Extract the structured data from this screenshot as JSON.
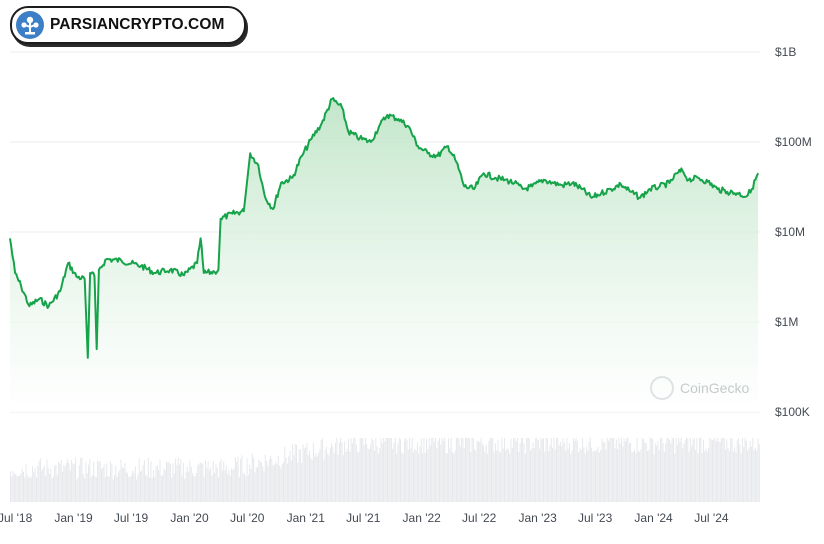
{
  "logo": {
    "text": "PARSIANCRYPTO.COM",
    "icon": "parsiancrypto-tree-icon",
    "color": "#3d7fc6"
  },
  "watermark": {
    "text": "CoinGecko",
    "icon": "coingecko-icon"
  },
  "chart_data": {
    "type": "area",
    "yscale": "log",
    "ylim": [
      100000,
      1000000000
    ],
    "y_ticks": [
      {
        "value": 1000000000,
        "label": "$1B"
      },
      {
        "value": 100000000,
        "label": "$100M"
      },
      {
        "value": 10000000,
        "label": "$10M"
      },
      {
        "value": 1000000,
        "label": "$1M"
      },
      {
        "value": 100000,
        "label": "$100K"
      }
    ],
    "x_ticks": [
      "Jul '18",
      "Jan '19",
      "Jul '19",
      "Jan '20",
      "Jul '20",
      "Jan '21",
      "Jul '21",
      "Jan '22",
      "Jul '22",
      "Jan '23",
      "Jul '23",
      "Jan '24",
      "Jul '24"
    ],
    "colors": {
      "line": "#16a34a",
      "fill_top": "#bfe5c7",
      "fill_bottom": "#ffffff",
      "volume": "#e6e8eb",
      "grid": "#eceef0"
    },
    "series": [
      {
        "values": [
          [
            "2018-06-15",
            8500000
          ],
          [
            "2018-07-01",
            3500000
          ],
          [
            "2018-07-20",
            2500000
          ],
          [
            "2018-08-15",
            1500000
          ],
          [
            "2018-09-15",
            1800000
          ],
          [
            "2018-10-15",
            1500000
          ],
          [
            "2018-11-20",
            2200000
          ],
          [
            "2018-12-15",
            4500000
          ],
          [
            "2019-01-10",
            3200000
          ],
          [
            "2019-02-05",
            3000000
          ],
          [
            "2019-02-15",
            400000
          ],
          [
            "2019-02-22",
            3500000
          ],
          [
            "2019-03-08",
            3200000
          ],
          [
            "2019-03-15",
            500000
          ],
          [
            "2019-03-22",
            3800000
          ],
          [
            "2019-04-15",
            5000000
          ],
          [
            "2019-06-01",
            4800000
          ],
          [
            "2019-08-01",
            4200000
          ],
          [
            "2019-09-15",
            3500000
          ],
          [
            "2019-11-01",
            3800000
          ],
          [
            "2019-12-15",
            3300000
          ],
          [
            "2020-01-25",
            4500000
          ],
          [
            "2020-02-05",
            8500000
          ],
          [
            "2020-02-15",
            3500000
          ],
          [
            "2020-03-20",
            3600000
          ],
          [
            "2020-04-01",
            3800000
          ],
          [
            "2020-04-08",
            14000000
          ],
          [
            "2020-05-15",
            16000000
          ],
          [
            "2020-06-20",
            17000000
          ],
          [
            "2020-07-10",
            75000000
          ],
          [
            "2020-08-05",
            55000000
          ],
          [
            "2020-08-25",
            25000000
          ],
          [
            "2020-09-20",
            18000000
          ],
          [
            "2020-10-15",
            35000000
          ],
          [
            "2020-11-20",
            40000000
          ],
          [
            "2020-12-20",
            70000000
          ],
          [
            "2021-01-20",
            110000000
          ],
          [
            "2021-02-20",
            160000000
          ],
          [
            "2021-03-25",
            300000000
          ],
          [
            "2021-04-25",
            240000000
          ],
          [
            "2021-05-15",
            130000000
          ],
          [
            "2021-06-20",
            110000000
          ],
          [
            "2021-07-25",
            100000000
          ],
          [
            "2021-08-20",
            150000000
          ],
          [
            "2021-09-15",
            200000000
          ],
          [
            "2021-10-20",
            180000000
          ],
          [
            "2021-11-20",
            150000000
          ],
          [
            "2021-12-20",
            90000000
          ],
          [
            "2022-01-20",
            75000000
          ],
          [
            "2022-02-20",
            70000000
          ],
          [
            "2022-03-25",
            90000000
          ],
          [
            "2022-04-20",
            60000000
          ],
          [
            "2022-05-15",
            32000000
          ],
          [
            "2022-06-15",
            30000000
          ],
          [
            "2022-07-15",
            45000000
          ],
          [
            "2022-08-20",
            40000000
          ],
          [
            "2022-09-20",
            38000000
          ],
          [
            "2022-10-20",
            35000000
          ],
          [
            "2022-11-15",
            30000000
          ],
          [
            "2022-12-15",
            32000000
          ],
          [
            "2023-01-20",
            38000000
          ],
          [
            "2023-02-20",
            35000000
          ],
          [
            "2023-03-20",
            33000000
          ],
          [
            "2023-04-20",
            35000000
          ],
          [
            "2023-05-20",
            30000000
          ],
          [
            "2023-06-20",
            24000000
          ],
          [
            "2023-07-20",
            27000000
          ],
          [
            "2023-08-20",
            30000000
          ],
          [
            "2023-09-20",
            34000000
          ],
          [
            "2023-10-20",
            28000000
          ],
          [
            "2023-11-20",
            24000000
          ],
          [
            "2023-12-20",
            30000000
          ],
          [
            "2024-01-20",
            32000000
          ],
          [
            "2024-02-20",
            35000000
          ],
          [
            "2024-03-15",
            45000000
          ],
          [
            "2024-04-01",
            48000000
          ],
          [
            "2024-04-20",
            38000000
          ],
          [
            "2024-05-20",
            40000000
          ],
          [
            "2024-06-20",
            36000000
          ],
          [
            "2024-07-20",
            30000000
          ],
          [
            "2024-08-20",
            28000000
          ],
          [
            "2024-09-20",
            27000000
          ],
          [
            "2024-10-20",
            25000000
          ],
          [
            "2024-11-05",
            30000000
          ],
          [
            "2024-11-25",
            45000000
          ]
        ]
      }
    ]
  }
}
